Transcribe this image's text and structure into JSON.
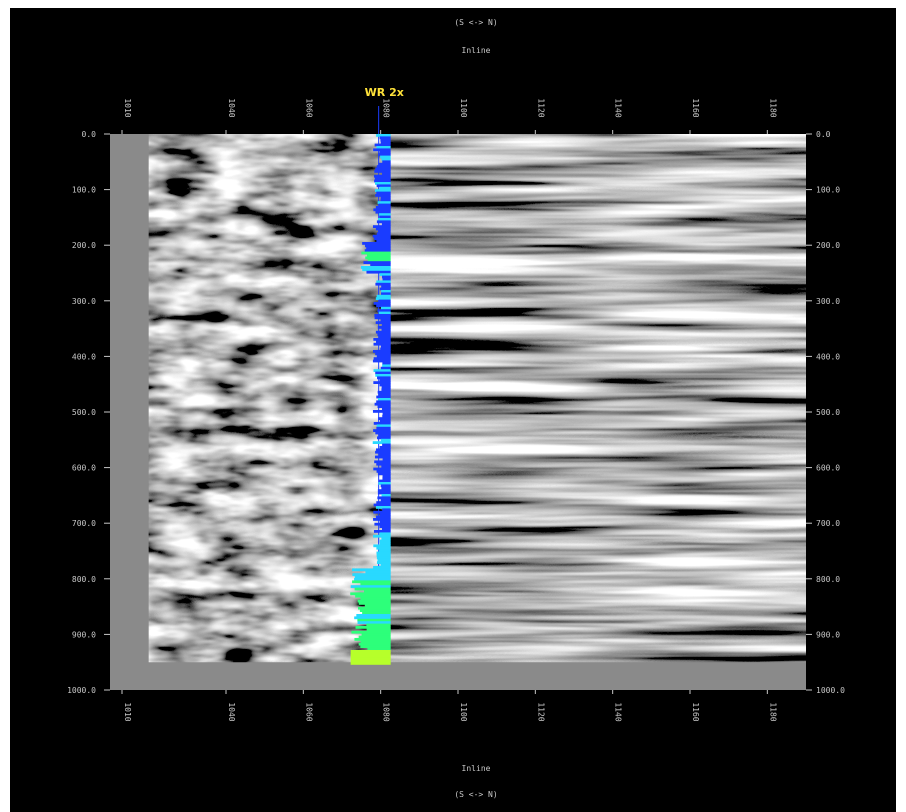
{
  "chart_data": {
    "type": "seismic-section",
    "title_top": "(S <-> N)",
    "xlabel_top": "Inline",
    "title_bottom": "(S <-> N)",
    "xlabel_bottom": "Inline",
    "x_ticks": [
      "1010",
      "1040",
      "1060",
      "1080",
      "1100",
      "1120",
      "1140",
      "1160",
      "1180"
    ],
    "xlim": [
      1010,
      1190
    ],
    "y_ticks": [
      "0.0",
      "100.0",
      "200.0",
      "300.0",
      "400.0",
      "500.0",
      "600.0",
      "700.0",
      "800.0",
      "900.0",
      "1000.0"
    ],
    "ylim": [
      0,
      1000
    ],
    "well": {
      "label": "WR 2x",
      "inline": 1080,
      "color_primary": "#1a3cff",
      "color_secondary": "#29d9ff",
      "color_high": "#2dff7a",
      "color_peak": "#b7ff2a"
    },
    "data_extent": {
      "inline_start": 1020,
      "inline_end": 1190,
      "depth_end": 950
    },
    "colors": {
      "background": "#000000",
      "plot_bg": "#8a8a8a",
      "label": "#c8c8c8",
      "well_label": "#ffe23a"
    }
  }
}
